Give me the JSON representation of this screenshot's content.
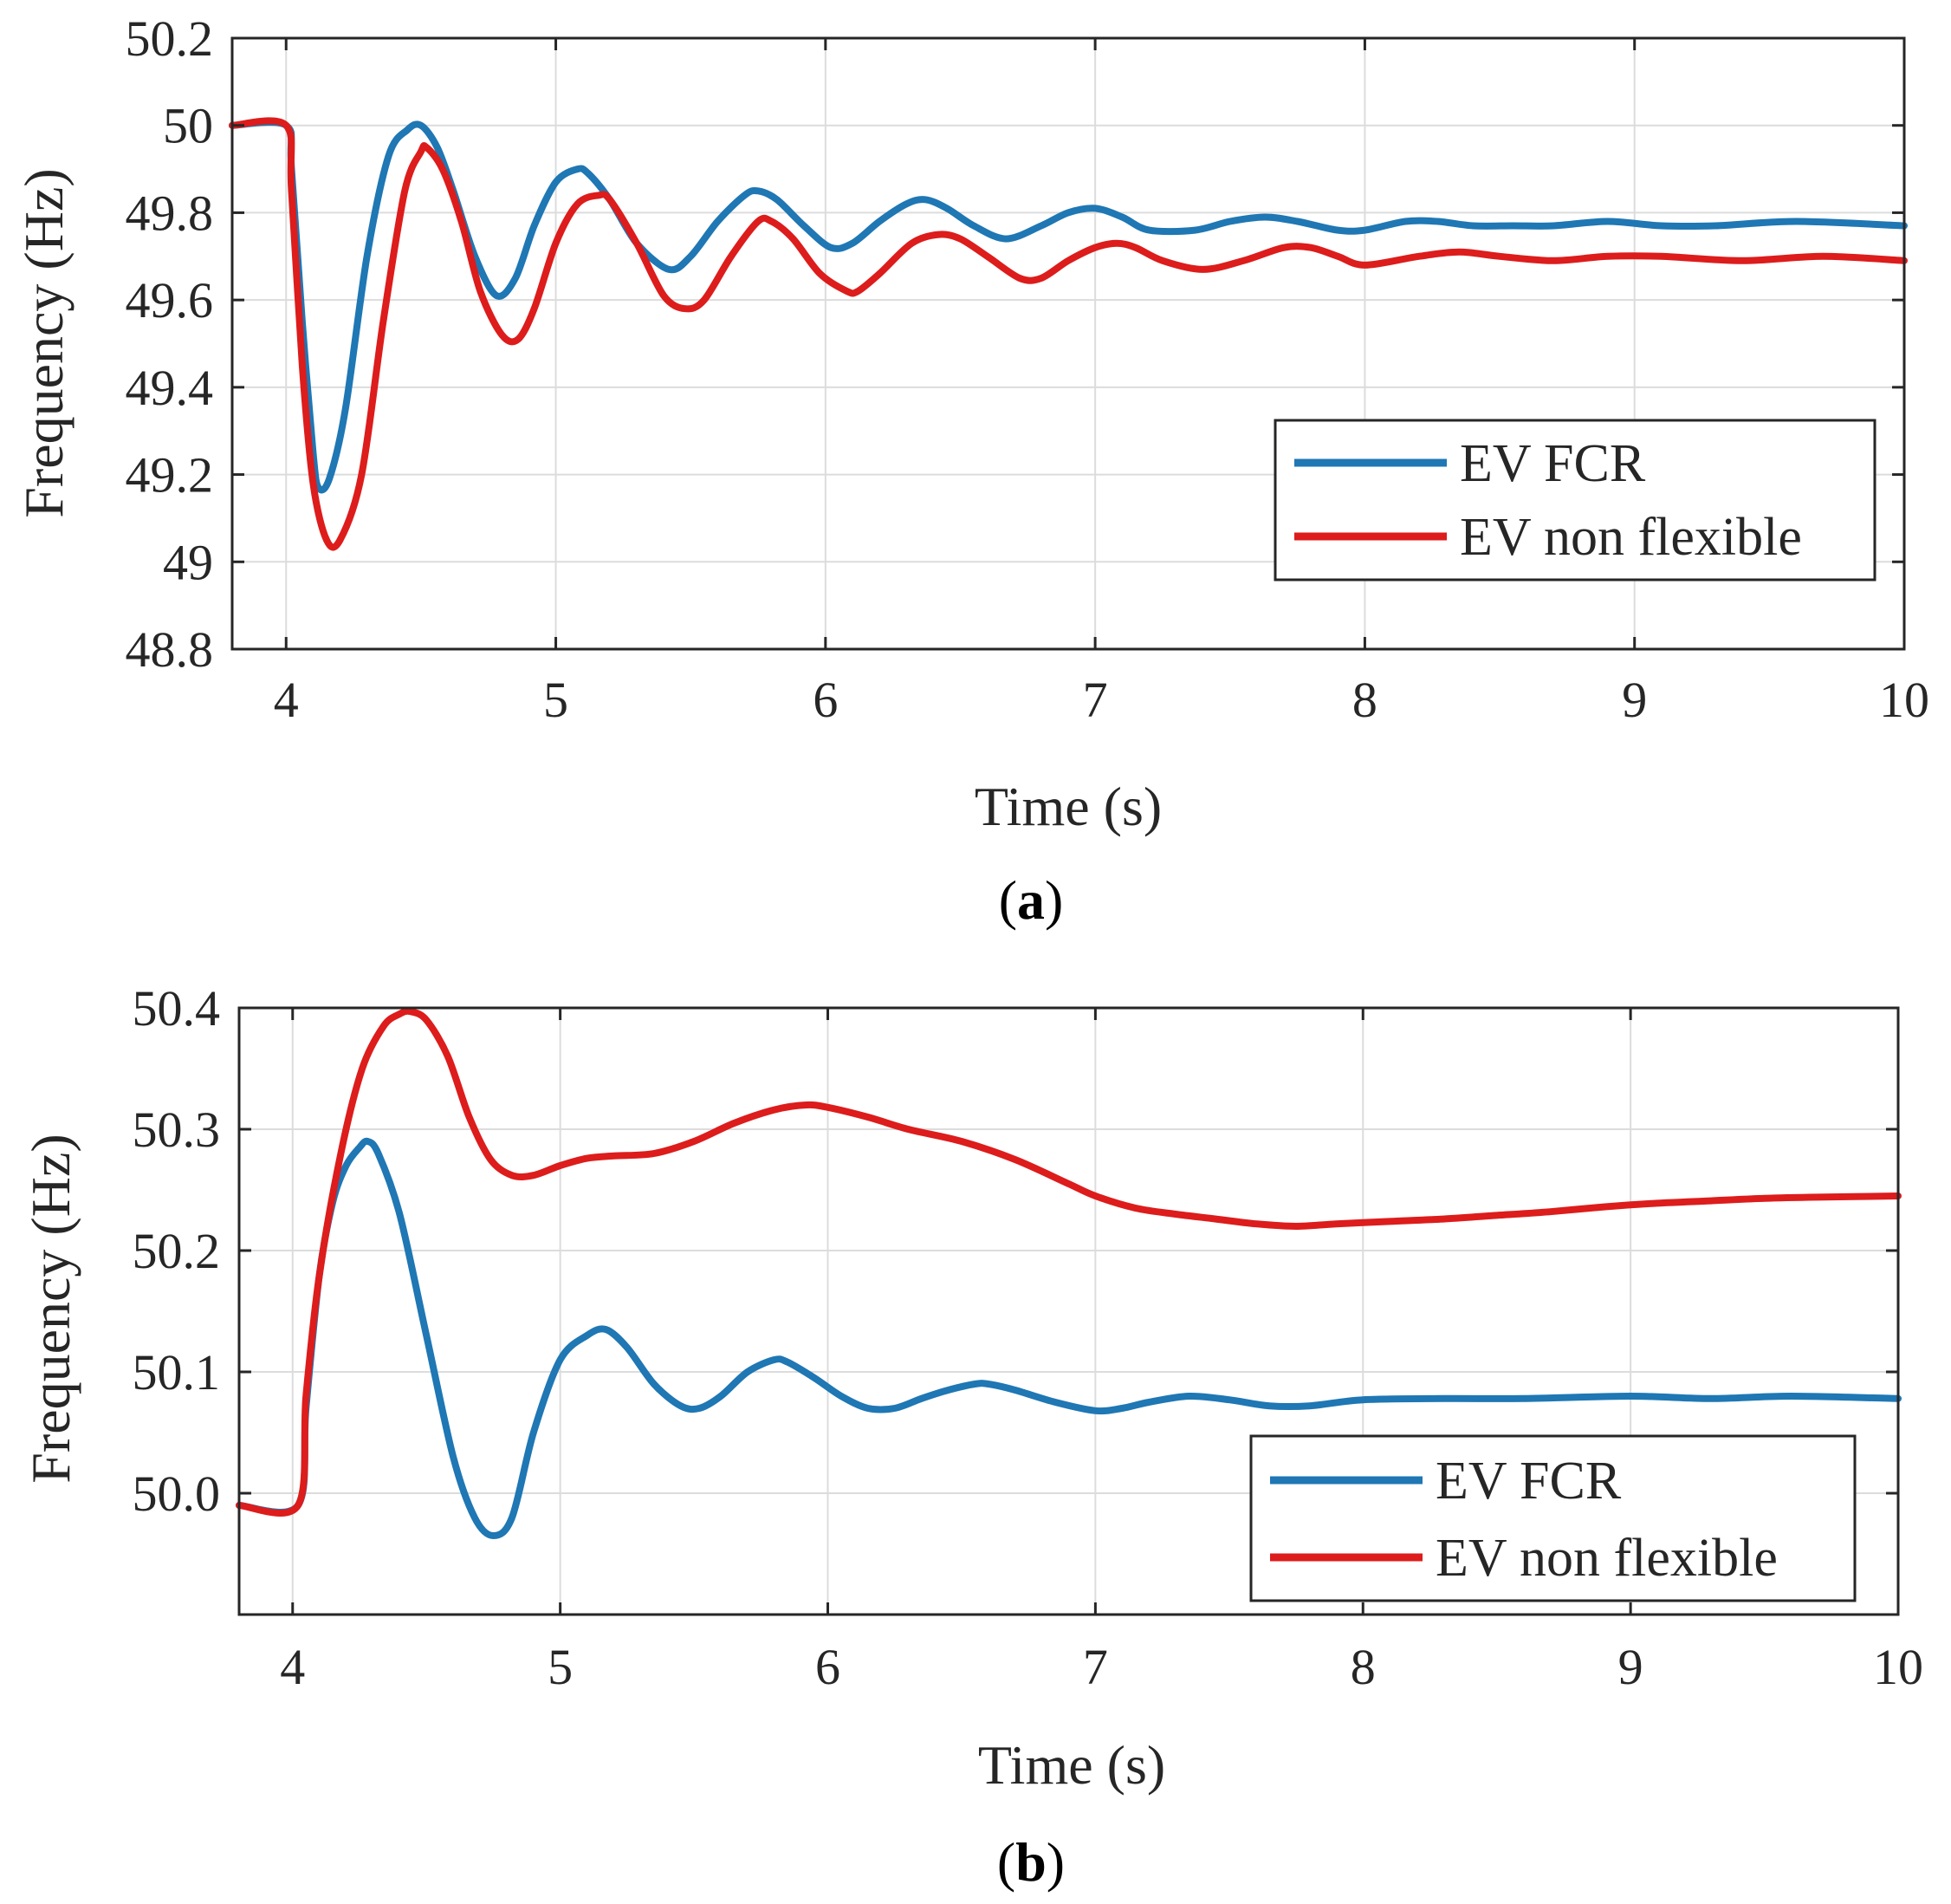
{
  "chart_data": [
    {
      "type": "line",
      "panel_label": "a",
      "xlabel": "Time (s)",
      "ylabel": "Frequency (Hz)",
      "xlim": [
        3.8,
        10
      ],
      "ylim": [
        48.8,
        50.2
      ],
      "xticks": [
        "4",
        "5",
        "6",
        "7",
        "8",
        "9",
        "10"
      ],
      "yticks": [
        "48.8",
        "49",
        "49.2",
        "49.4",
        "49.6",
        "49.8",
        "50",
        "50.2"
      ],
      "grid": true,
      "legend_position": "lower-right",
      "series": [
        {
          "name": "EV FCR",
          "color": "#1f77b4",
          "x": [
            3.8,
            4.0,
            4.02,
            4.06,
            4.1,
            4.12,
            4.16,
            4.22,
            4.3,
            4.38,
            4.45,
            4.5,
            4.56,
            4.62,
            4.7,
            4.78,
            4.85,
            4.92,
            5.0,
            5.08,
            5.12,
            5.2,
            5.3,
            5.42,
            5.5,
            5.6,
            5.7,
            5.75,
            5.82,
            5.92,
            6.02,
            6.1,
            6.2,
            6.3,
            6.37,
            6.45,
            6.55,
            6.67,
            6.8,
            6.9,
            7.0,
            7.1,
            7.2,
            7.37,
            7.5,
            7.63,
            7.75,
            7.9,
            8.0,
            8.15,
            8.27,
            8.4,
            8.55,
            8.7,
            8.9,
            9.1,
            9.3,
            9.6,
            10.0
          ],
          "y": [
            50.0,
            50.0,
            49.9,
            49.55,
            49.25,
            49.17,
            49.19,
            49.35,
            49.7,
            49.93,
            49.99,
            50.0,
            49.95,
            49.85,
            49.7,
            49.61,
            49.65,
            49.77,
            49.87,
            49.9,
            49.89,
            49.83,
            49.73,
            49.67,
            49.7,
            49.78,
            49.84,
            49.85,
            49.83,
            49.77,
            49.72,
            49.73,
            49.78,
            49.82,
            49.83,
            49.81,
            49.77,
            49.74,
            49.77,
            49.8,
            49.81,
            49.79,
            49.76,
            49.76,
            49.78,
            49.79,
            49.78,
            49.76,
            49.76,
            49.78,
            49.78,
            49.77,
            49.77,
            49.77,
            49.78,
            49.77,
            49.77,
            49.78,
            49.77
          ]
        },
        {
          "name": "EV non flexible",
          "color": "#dd1c1c",
          "x": [
            3.8,
            4.0,
            4.02,
            4.06,
            4.1,
            4.15,
            4.2,
            4.28,
            4.36,
            4.44,
            4.5,
            4.52,
            4.58,
            4.65,
            4.72,
            4.8,
            4.86,
            4.92,
            5.0,
            5.08,
            5.16,
            5.2,
            5.3,
            5.4,
            5.48,
            5.55,
            5.65,
            5.75,
            5.8,
            5.88,
            5.98,
            6.08,
            6.12,
            6.2,
            6.32,
            6.42,
            6.5,
            6.6,
            6.72,
            6.8,
            6.9,
            7.0,
            7.08,
            7.15,
            7.25,
            7.4,
            7.55,
            7.7,
            7.8,
            7.9,
            8.0,
            8.2,
            8.35,
            8.5,
            8.7,
            8.9,
            9.1,
            9.4,
            9.7,
            10.0
          ],
          "y": [
            50.0,
            50.0,
            49.85,
            49.45,
            49.18,
            49.05,
            49.05,
            49.2,
            49.55,
            49.85,
            49.94,
            49.95,
            49.9,
            49.78,
            49.62,
            49.52,
            49.51,
            49.58,
            49.73,
            49.82,
            49.84,
            49.83,
            49.73,
            49.61,
            49.58,
            49.6,
            49.7,
            49.78,
            49.78,
            49.74,
            49.66,
            49.62,
            49.62,
            49.66,
            49.73,
            49.75,
            49.74,
            49.7,
            49.65,
            49.65,
            49.69,
            49.72,
            49.73,
            49.72,
            49.69,
            49.67,
            49.69,
            49.72,
            49.72,
            49.7,
            49.68,
            49.7,
            49.71,
            49.7,
            49.69,
            49.7,
            49.7,
            49.69,
            49.7,
            49.69
          ]
        }
      ]
    },
    {
      "type": "line",
      "panel_label": "b",
      "xlabel": "Time (s)",
      "ylabel": "Frequency (Hz)",
      "xlim": [
        3.8,
        10
      ],
      "ylim": [
        49.9,
        50.4
      ],
      "xticks": [
        "4",
        "5",
        "6",
        "7",
        "8",
        "9",
        "10"
      ],
      "yticks": [
        "50.0",
        "50.1",
        "50.2",
        "50.3",
        "50.4"
      ],
      "grid": true,
      "legend_position": "lower-right",
      "series": [
        {
          "name": "EV FCR",
          "color": "#1f77b4",
          "x": [
            3.8,
            4.02,
            4.05,
            4.1,
            4.15,
            4.2,
            4.25,
            4.28,
            4.32,
            4.4,
            4.5,
            4.6,
            4.68,
            4.75,
            4.82,
            4.9,
            5.0,
            5.1,
            5.17,
            5.25,
            5.35,
            5.45,
            5.52,
            5.6,
            5.7,
            5.8,
            5.85,
            5.95,
            6.05,
            6.15,
            6.25,
            6.35,
            6.45,
            6.55,
            6.6,
            6.7,
            6.85,
            7.0,
            7.1,
            7.2,
            7.35,
            7.5,
            7.65,
            7.8,
            8.0,
            8.3,
            8.6,
            9.0,
            9.3,
            9.6,
            10.0
          ],
          "y": [
            49.99,
            49.99,
            50.07,
            50.18,
            50.24,
            50.27,
            50.285,
            50.29,
            50.28,
            50.23,
            50.13,
            50.03,
            49.98,
            49.965,
            49.98,
            50.05,
            50.11,
            50.13,
            50.135,
            50.12,
            50.09,
            50.072,
            50.07,
            50.08,
            50.1,
            50.11,
            50.108,
            50.095,
            50.08,
            50.07,
            50.07,
            50.078,
            50.085,
            50.09,
            50.09,
            50.085,
            50.075,
            50.068,
            50.07,
            50.075,
            50.08,
            50.077,
            50.072,
            50.072,
            50.077,
            50.078,
            50.078,
            50.08,
            50.078,
            50.08,
            50.078
          ]
        },
        {
          "name": "EV non flexible",
          "color": "#dd1c1c",
          "x": [
            3.8,
            4.02,
            4.05,
            4.1,
            4.18,
            4.26,
            4.34,
            4.4,
            4.44,
            4.5,
            4.58,
            4.66,
            4.74,
            4.82,
            4.9,
            5.0,
            5.1,
            5.2,
            5.35,
            5.5,
            5.65,
            5.8,
            5.92,
            6.0,
            6.15,
            6.3,
            6.5,
            6.7,
            6.9,
            7.0,
            7.15,
            7.3,
            7.45,
            7.6,
            7.75,
            7.9,
            8.1,
            8.3,
            8.5,
            8.7,
            8.9,
            9.1,
            9.3,
            9.5,
            9.7,
            10.0
          ],
          "y": [
            49.99,
            49.99,
            50.08,
            50.18,
            50.28,
            50.35,
            50.385,
            50.395,
            50.397,
            50.39,
            50.36,
            50.31,
            50.275,
            50.262,
            50.262,
            50.27,
            50.276,
            50.278,
            50.28,
            50.29,
            50.305,
            50.316,
            50.32,
            50.318,
            50.31,
            50.3,
            50.29,
            50.275,
            50.255,
            50.245,
            50.235,
            50.23,
            50.226,
            50.222,
            50.22,
            50.222,
            50.224,
            50.226,
            50.229,
            50.232,
            50.236,
            50.239,
            50.241,
            50.243,
            50.244,
            50.245
          ]
        }
      ]
    }
  ]
}
